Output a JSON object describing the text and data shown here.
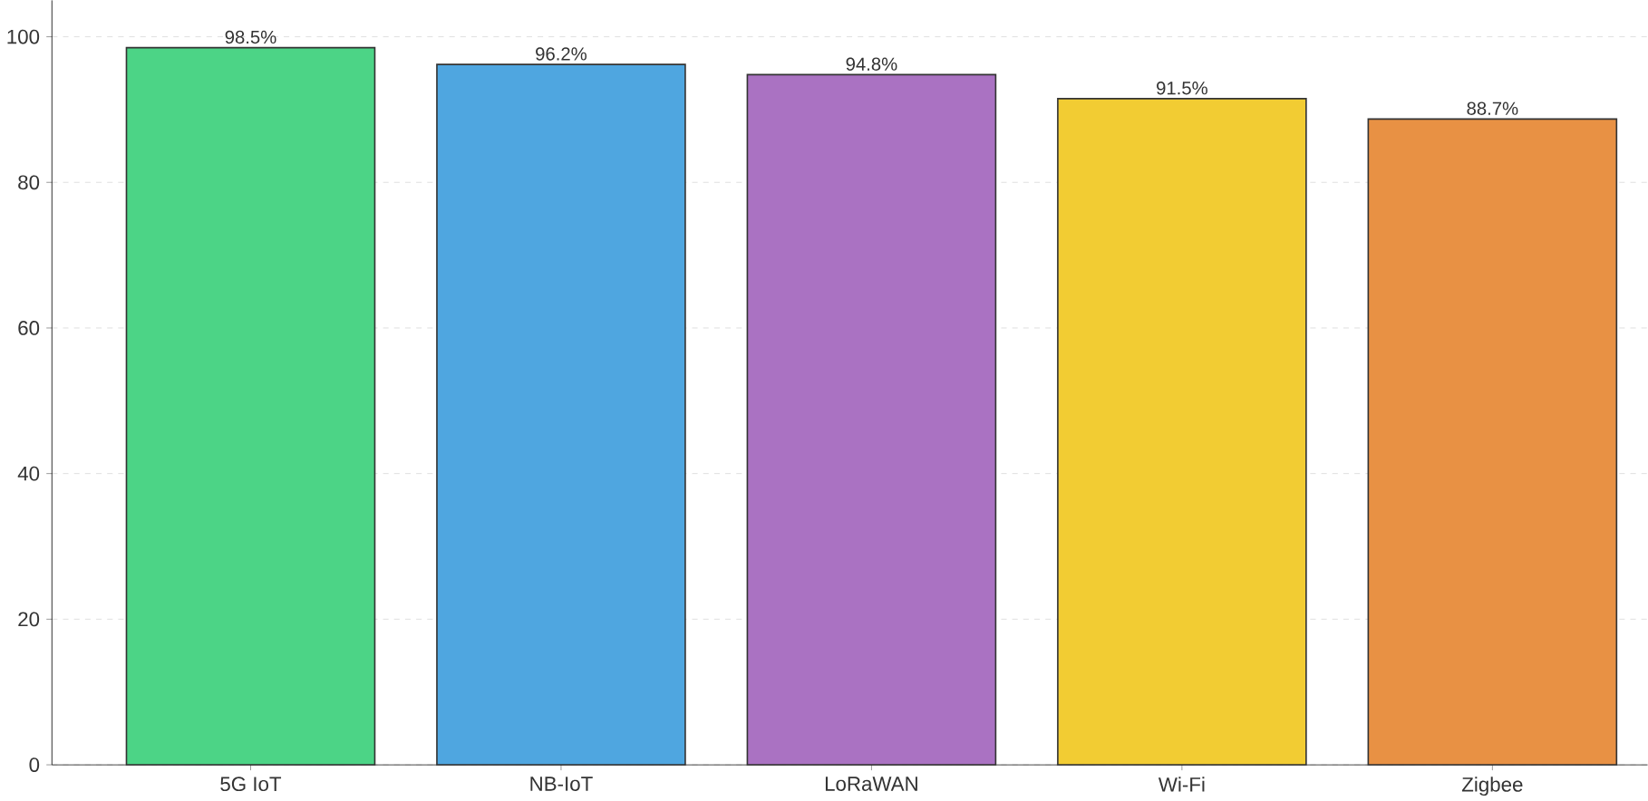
{
  "chart_data": {
    "type": "bar",
    "categories": [
      "5G IoT",
      "NB-IoT",
      "LoRaWAN",
      "Wi-Fi",
      "Zigbee"
    ],
    "values": [
      98.5,
      96.2,
      94.8,
      91.5,
      88.7
    ],
    "colors": [
      "#4cd486",
      "#4fa6e0",
      "#aa72c2",
      "#f2cc33",
      "#e89144"
    ],
    "value_labels": [
      "98.5%",
      "96.2%",
      "94.8%",
      "91.5%",
      "88.7%"
    ],
    "ylim": [
      0,
      105
    ],
    "yticks": [
      0,
      20,
      40,
      60,
      80,
      100
    ],
    "grid": "y"
  }
}
